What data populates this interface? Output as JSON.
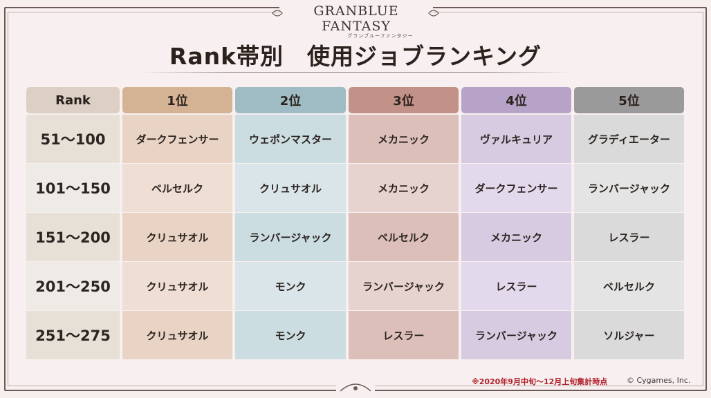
{
  "logo": {
    "main": "GRANBLUE FANTASY",
    "sub": "グランブルーファンタジー"
  },
  "title": "Rank帯別　使用ジョブランキング",
  "table": {
    "rank_header": "Rank",
    "place_headers": [
      "1位",
      "2位",
      "3位",
      "4位",
      "5位"
    ],
    "rows": [
      {
        "rank": "51～100",
        "jobs": [
          "ダークフェンサー",
          "ウェポンマスター",
          "メカニック",
          "ヴァルキュリア",
          "グラディエーター"
        ]
      },
      {
        "rank": "101～150",
        "jobs": [
          "ベルセルク",
          "クリュサオル",
          "メカニック",
          "ダークフェンサー",
          "ランバージャック"
        ]
      },
      {
        "rank": "151～200",
        "jobs": [
          "クリュサオル",
          "ランバージャック",
          "ベルセルク",
          "メカニック",
          "レスラー"
        ]
      },
      {
        "rank": "201～250",
        "jobs": [
          "クリュサオル",
          "モンク",
          "ランバージャック",
          "レスラー",
          "ベルセルク"
        ]
      },
      {
        "rank": "251～275",
        "jobs": [
          "クリュサオル",
          "モンク",
          "レスラー",
          "ランバージャック",
          "ソルジャー"
        ]
      }
    ]
  },
  "colors": {
    "rank_header": "#dccfc4",
    "rank_cell_even": "#e6e0d6",
    "rank_cell_odd": "#eeeae6",
    "place_headers": [
      "#d4b394",
      "#9fbcc4",
      "#c29289",
      "#b7a3c8",
      "#9a9a9a"
    ],
    "place_cells_even": [
      "#e9d3c4",
      "#ccdde2",
      "#ddbfba",
      "#d7cbe2",
      "#dadada"
    ],
    "place_cells_odd": [
      "#eeded4",
      "#d9e5e8",
      "#e6d2ce",
      "#e2d9ec",
      "#e4e4e4"
    ]
  },
  "footnote": "※2020年9月中旬～12月上旬集計時点",
  "copyright": "© Cygames, Inc."
}
